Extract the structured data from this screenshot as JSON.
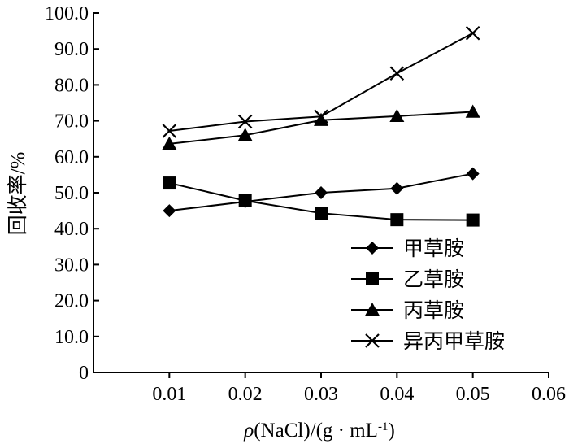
{
  "chart_data": {
    "type": "line",
    "xlabel_rho": "ρ",
    "xlabel_rest": "(NaCl)/(g · mL",
    "xlabel_sup": "-1",
    "xlabel_close": ")",
    "ylabel": "回收率/%",
    "xlim": [
      0,
      0.06
    ],
    "ylim": [
      0,
      100
    ],
    "x_ticks": [
      "0.01",
      "0.02",
      "0.03",
      "0.04",
      "0.05",
      "0.06"
    ],
    "y_ticks": [
      "0",
      "10.0",
      "20.0",
      "30.0",
      "40.0",
      "50.0",
      "60.0",
      "70.0",
      "80.0",
      "90.0",
      "100.0"
    ],
    "x": [
      0.01,
      0.02,
      0.03,
      0.04,
      0.05
    ],
    "series": [
      {
        "name": "甲草胺",
        "marker": "diamond",
        "values": [
          45.0,
          47.5,
          50.0,
          51.2,
          55.3
        ]
      },
      {
        "name": "乙草胺",
        "marker": "square",
        "values": [
          52.7,
          47.8,
          44.3,
          42.5,
          42.4
        ]
      },
      {
        "name": "丙草胺",
        "marker": "triangle",
        "values": [
          63.6,
          66.0,
          70.2,
          71.3,
          72.5
        ]
      },
      {
        "name": "异丙甲草胺",
        "marker": "x",
        "values": [
          67.2,
          69.8,
          71.2,
          83.2,
          94.4
        ]
      }
    ],
    "legend_position": "bottom-right",
    "grid": false
  }
}
